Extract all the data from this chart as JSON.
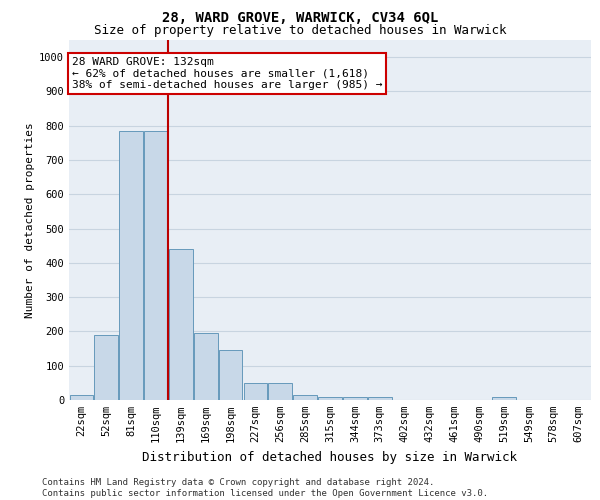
{
  "title1": "28, WARD GROVE, WARWICK, CV34 6QL",
  "title2": "Size of property relative to detached houses in Warwick",
  "xlabel": "Distribution of detached houses by size in Warwick",
  "ylabel": "Number of detached properties",
  "categories": [
    "22sqm",
    "52sqm",
    "81sqm",
    "110sqm",
    "139sqm",
    "169sqm",
    "198sqm",
    "227sqm",
    "256sqm",
    "285sqm",
    "315sqm",
    "344sqm",
    "373sqm",
    "402sqm",
    "432sqm",
    "461sqm",
    "490sqm",
    "519sqm",
    "549sqm",
    "578sqm",
    "607sqm"
  ],
  "values": [
    15,
    190,
    785,
    785,
    440,
    195,
    145,
    50,
    50,
    15,
    10,
    8,
    8,
    0,
    0,
    0,
    0,
    8,
    0,
    0,
    0
  ],
  "bar_color": "#c8d8e8",
  "bar_edge_color": "#6699bb",
  "grid_color": "#c8d4e0",
  "background_color": "#e8eef5",
  "property_line_x": 3.5,
  "annotation_text_line1": "28 WARD GROVE: 132sqm",
  "annotation_text_line2": "← 62% of detached houses are smaller (1,618)",
  "annotation_text_line3": "38% of semi-detached houses are larger (985) →",
  "footer_text": "Contains HM Land Registry data © Crown copyright and database right 2024.\nContains public sector information licensed under the Open Government Licence v3.0.",
  "ylim": [
    0,
    1050
  ],
  "yticks": [
    0,
    100,
    200,
    300,
    400,
    500,
    600,
    700,
    800,
    900,
    1000
  ],
  "title1_fontsize": 10,
  "title2_fontsize": 9,
  "xlabel_fontsize": 9,
  "ylabel_fontsize": 8,
  "tick_fontsize": 7.5,
  "annotation_fontsize": 8,
  "footer_fontsize": 6.5
}
